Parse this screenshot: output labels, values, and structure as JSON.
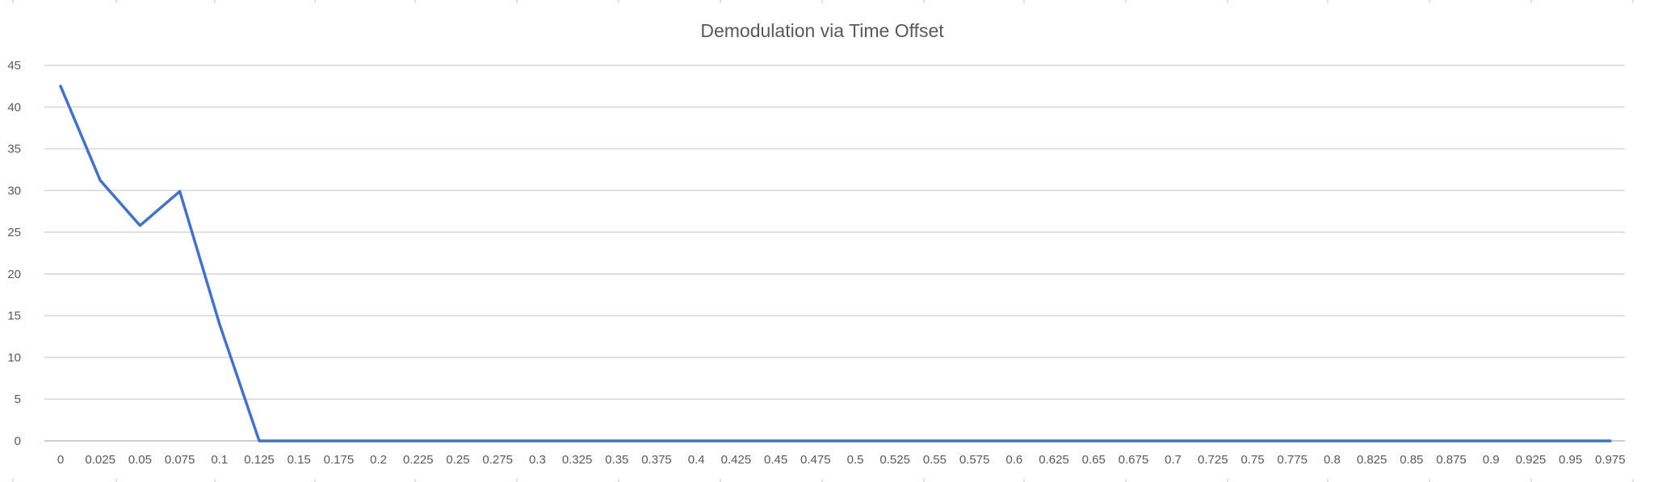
{
  "chart_data": {
    "type": "line",
    "title": "Demodulation via Time Offset",
    "xlabel": "",
    "ylabel": "",
    "categories": [
      "0",
      "0.025",
      "0.05",
      "0.075",
      "0.1",
      "0.125",
      "0.15",
      "0.175",
      "0.2",
      "0.225",
      "0.25",
      "0.275",
      "0.3",
      "0.325",
      "0.35",
      "0.375",
      "0.4",
      "0.425",
      "0.45",
      "0.475",
      "0.5",
      "0.525",
      "0.55",
      "0.575",
      "0.6",
      "0.625",
      "0.65",
      "0.675",
      "0.7",
      "0.725",
      "0.75",
      "0.775",
      "0.8",
      "0.825",
      "0.85",
      "0.875",
      "0.9",
      "0.925",
      "0.95",
      "0.975"
    ],
    "series": [
      {
        "name": "",
        "color": "#4472c4",
        "values": [
          42.5,
          31.2,
          25.8,
          29.9,
          14,
          0,
          0,
          0,
          0,
          0,
          0,
          0,
          0,
          0,
          0,
          0,
          0,
          0,
          0,
          0,
          0,
          0,
          0,
          0,
          0,
          0,
          0,
          0,
          0,
          0,
          0,
          0,
          0,
          0,
          0,
          0,
          0,
          0,
          0,
          0
        ]
      }
    ],
    "y_ticks": [
      "0",
      "5",
      "10",
      "15",
      "20",
      "25",
      "30",
      "35",
      "40",
      "45"
    ],
    "ylim": [
      0,
      45
    ],
    "grid": true,
    "legend": "none"
  }
}
